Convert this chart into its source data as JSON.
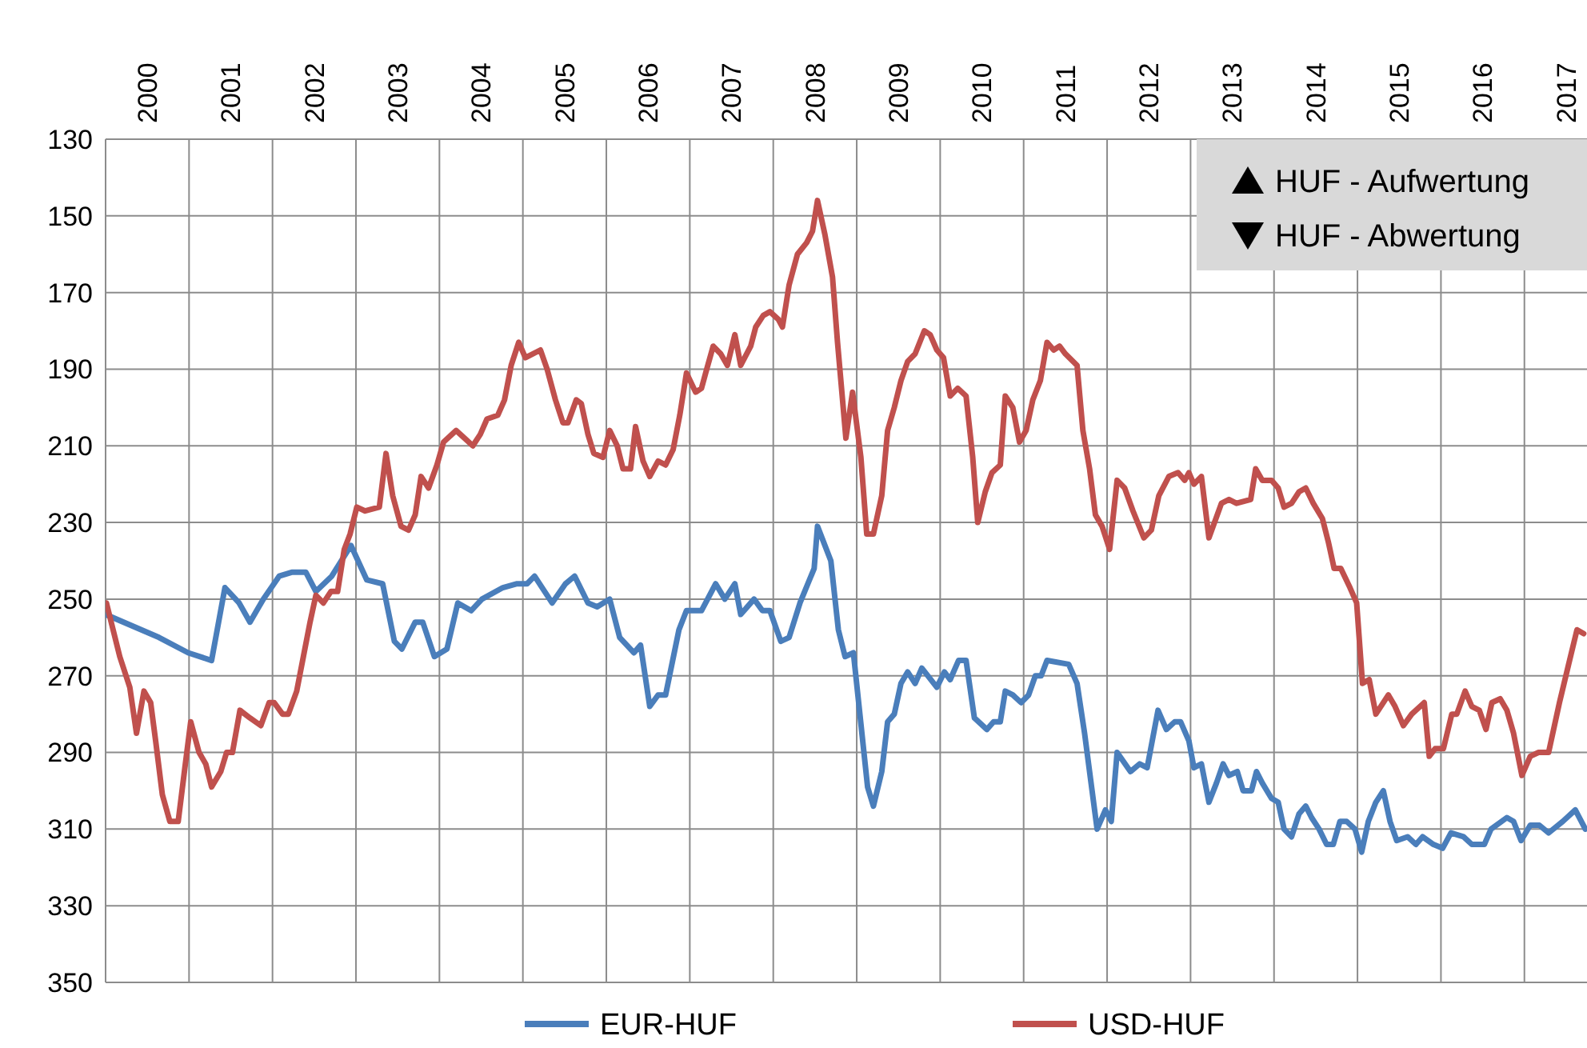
{
  "chart_data": {
    "type": "line",
    "xlim": [
      2000,
      2017.75
    ],
    "xticks": [
      {
        "value": 2000,
        "label": null
      },
      {
        "value": 2001,
        "label": null
      },
      {
        "value": 2002,
        "label": null
      },
      {
        "value": 2003,
        "label": null
      },
      {
        "value": 2004,
        "label": null
      },
      {
        "value": 2005,
        "label": null
      },
      {
        "value": 2006,
        "label": null
      },
      {
        "value": 2007,
        "label": null
      },
      {
        "value": 2008,
        "label": null
      },
      {
        "value": 2009,
        "label": null
      },
      {
        "value": 2010,
        "label": null
      },
      {
        "value": 2011,
        "label": null
      },
      {
        "value": 2012,
        "label": null
      },
      {
        "value": 2013,
        "label": null
      },
      {
        "value": 2014,
        "label": null
      },
      {
        "value": 2015,
        "label": null
      },
      {
        "value": 2016,
        "label": null
      },
      {
        "value": 2017,
        "label": null
      },
      {
        "value": 2000.5,
        "label": "2000"
      },
      {
        "value": 2001.5,
        "label": "2001"
      },
      {
        "value": 2002.5,
        "label": "2002"
      },
      {
        "value": 2003.5,
        "label": "2003"
      },
      {
        "value": 2004.5,
        "label": "2004"
      },
      {
        "value": 2005.5,
        "label": "2005"
      },
      {
        "value": 2006.5,
        "label": "2006"
      },
      {
        "value": 2007.5,
        "label": "2007"
      },
      {
        "value": 2008.5,
        "label": "2008"
      },
      {
        "value": 2009.5,
        "label": "2009"
      },
      {
        "value": 2010.5,
        "label": "2010"
      },
      {
        "value": 2011.5,
        "label": "2011"
      },
      {
        "value": 2012.5,
        "label": "2012"
      },
      {
        "value": 2013.5,
        "label": "2013"
      },
      {
        "value": 2014.5,
        "label": "2014"
      },
      {
        "value": 2015.5,
        "label": "2015"
      },
      {
        "value": 2016.5,
        "label": "2016"
      },
      {
        "value": 2017.5,
        "label": "2017"
      }
    ],
    "ylim": [
      350,
      130
    ],
    "yticks": [
      130,
      150,
      170,
      190,
      210,
      230,
      250,
      270,
      290,
      310,
      330,
      350
    ],
    "grid": true,
    "legend": "bottom",
    "marker": "none",
    "line_style": "solid",
    "annotations": [
      "HUF - Aufwertung",
      "HUF - Abwertung"
    ],
    "series": [
      {
        "name": "EUR-HUF",
        "color": "#4a7ebb",
        "x": [
          2000.0,
          2000.64,
          2000.99,
          2001.27,
          2001.43,
          2001.6,
          2001.73,
          2001.89,
          2002.08,
          2002.23,
          2002.4,
          2002.52,
          2002.71,
          2002.94,
          2003.13,
          2003.32,
          2003.46,
          2003.55,
          2003.71,
          2003.8,
          2003.94,
          2004.09,
          2004.22,
          2004.38,
          2004.51,
          2004.76,
          2004.93,
          2005.05,
          2005.14,
          2005.35,
          2005.51,
          2005.62,
          2005.78,
          2005.89,
          2006.04,
          2006.16,
          2006.33,
          2006.41,
          2006.52,
          2006.62,
          2006.71,
          2006.87,
          2006.96,
          2007.14,
          2007.31,
          2007.42,
          2007.54,
          2007.61,
          2007.77,
          2007.87,
          2007.96,
          2008.09,
          2008.19,
          2008.32,
          2008.49,
          2008.53,
          2008.69,
          2008.78,
          2008.86,
          2008.96,
          2009.13,
          2009.2,
          2009.3,
          2009.37,
          2009.45,
          2009.53,
          2009.61,
          2009.7,
          2009.78,
          2009.96,
          2010.05,
          2010.12,
          2010.22,
          2010.31,
          2010.41,
          2010.56,
          2010.64,
          2010.72,
          2010.78,
          2010.87,
          2010.97,
          2011.06,
          2011.14,
          2011.21,
          2011.28,
          2011.54,
          2011.64,
          2011.73,
          2011.79,
          2011.88,
          2011.98,
          2012.05,
          2012.12,
          2012.28,
          2012.39,
          2012.48,
          2012.61,
          2012.71,
          2012.81,
          2012.88,
          2012.98,
          2013.04,
          2013.13,
          2013.22,
          2013.31,
          2013.39,
          2013.46,
          2013.56,
          2013.63,
          2013.73,
          2013.79,
          2013.86,
          2013.97,
          2014.05,
          2014.12,
          2014.21,
          2014.3,
          2014.38,
          2014.45,
          2014.54,
          2014.63,
          2014.71,
          2014.79,
          2014.87,
          2014.97,
          2015.05,
          2015.13,
          2015.22,
          2015.31,
          2015.39,
          2015.47,
          2015.6,
          2015.7,
          2015.78,
          2015.91,
          2016.02,
          2016.12,
          2016.27,
          2016.37,
          2016.52,
          2016.6,
          2016.79,
          2016.87,
          2016.96,
          2017.07,
          2017.18,
          2017.29,
          2017.46,
          2017.61,
          2017.73
        ],
        "values": [
          254,
          260,
          264,
          266,
          247,
          251,
          256,
          250,
          244,
          243,
          243,
          248,
          244,
          236,
          245,
          246,
          261,
          263,
          256,
          256,
          265,
          263,
          251,
          253,
          250,
          247,
          246,
          246,
          244,
          251,
          246,
          244,
          251,
          252,
          250,
          260,
          264,
          262,
          278,
          275,
          275,
          258,
          253,
          253,
          246,
          250,
          246,
          254,
          250,
          253,
          253,
          261,
          260,
          251,
          242,
          231,
          240,
          258,
          265,
          264,
          299,
          304,
          295,
          282,
          280,
          272,
          269,
          272,
          268,
          273,
          269,
          271,
          266,
          266,
          281,
          284,
          282,
          282,
          274,
          275,
          277,
          275,
          270,
          270,
          266,
          267,
          272,
          285,
          295,
          310,
          305,
          308,
          290,
          295,
          293,
          294,
          279,
          284,
          282,
          282,
          287,
          294,
          293,
          303,
          298,
          293,
          296,
          295,
          300,
          300,
          295,
          298,
          302,
          303,
          310,
          312,
          306,
          304,
          307,
          310,
          314,
          314,
          308,
          308,
          310,
          316,
          308,
          303,
          300,
          308,
          313,
          312,
          314,
          312,
          314,
          315,
          311,
          312,
          314,
          314,
          310,
          307,
          308,
          313,
          309,
          309,
          311,
          308,
          305,
          310
        ]
      },
      {
        "name": "USD-HUF",
        "color": "#c0504d",
        "x": [
          2000.01,
          2000.17,
          2000.29,
          2000.37,
          2000.46,
          2000.54,
          2000.6,
          2000.68,
          2000.77,
          2000.87,
          2000.95,
          2001.02,
          2001.12,
          2001.2,
          2001.27,
          2001.38,
          2001.45,
          2001.52,
          2001.61,
          2001.73,
          2001.86,
          2001.96,
          2002.02,
          2002.12,
          2002.19,
          2002.29,
          2002.37,
          2002.45,
          2002.52,
          2002.61,
          2002.7,
          2002.78,
          2002.86,
          2002.93,
          2003.01,
          2003.11,
          2003.28,
          2003.36,
          2003.44,
          2003.54,
          2003.63,
          2003.71,
          2003.78,
          2003.87,
          2003.97,
          2004.05,
          2004.2,
          2004.3,
          2004.4,
          2004.49,
          2004.57,
          2004.7,
          2004.78,
          2004.86,
          2004.95,
          2005.03,
          2005.21,
          2005.29,
          2005.39,
          2005.48,
          2005.54,
          2005.64,
          2005.7,
          2005.78,
          2005.85,
          2005.96,
          2006.04,
          2006.13,
          2006.2,
          2006.29,
          2006.35,
          2006.44,
          2006.52,
          2006.62,
          2006.71,
          2006.8,
          2006.88,
          2006.96,
          2007.07,
          2007.14,
          2007.19,
          2007.28,
          2007.37,
          2007.45,
          2007.54,
          2007.61,
          2007.73,
          2007.79,
          2007.88,
          2007.96,
          2008.06,
          2008.11,
          2008.19,
          2008.29,
          2008.4,
          2008.47,
          2008.53,
          2008.62,
          2008.71,
          2008.77,
          2008.87,
          2008.95,
          2009.05,
          2009.12,
          2009.2,
          2009.3,
          2009.37,
          2009.45,
          2009.53,
          2009.61,
          2009.7,
          2009.81,
          2009.88,
          2009.96,
          2010.04,
          2010.12,
          2010.21,
          2010.31,
          2010.39,
          2010.45,
          2010.54,
          2010.62,
          2010.72,
          2010.78,
          2010.87,
          2010.95,
          2011.03,
          2011.11,
          2011.2,
          2011.28,
          2011.36,
          2011.43,
          2011.5,
          2011.64,
          2011.71,
          2011.79,
          2011.86,
          2011.94,
          2012.03,
          2012.12,
          2012.21,
          2012.31,
          2012.44,
          2012.53,
          2012.62,
          2012.74,
          2012.85,
          2012.93,
          2012.98,
          2013.04,
          2013.13,
          2013.22,
          2013.37,
          2013.46,
          2013.55,
          2013.72,
          2013.78,
          2013.86,
          2013.97,
          2014.05,
          2014.12,
          2014.21,
          2014.3,
          2014.38,
          2014.47,
          2014.58,
          2014.65,
          2014.72,
          2014.8,
          2014.91,
          2014.99,
          2015.06,
          2015.14,
          2015.22,
          2015.37,
          2015.45,
          2015.55,
          2015.65,
          2015.8,
          2015.86,
          2015.93,
          2016.03,
          2016.13,
          2016.19,
          2016.29,
          2016.37,
          2016.46,
          2016.54,
          2016.61,
          2016.71,
          2016.79,
          2016.87,
          2016.97,
          2017.07,
          2017.17,
          2017.29,
          2017.42,
          2017.53,
          2017.63,
          2017.71
        ],
        "values": [
          251,
          265,
          273,
          285,
          274,
          277,
          287,
          301,
          308,
          308,
          294,
          282,
          290,
          293,
          299,
          295,
          290,
          290,
          279,
          281,
          283,
          277,
          277,
          280,
          280,
          274,
          265,
          256,
          249,
          251,
          248,
          248,
          237,
          233,
          226,
          227,
          226,
          212,
          223,
          231,
          232,
          228,
          218,
          221,
          215,
          209,
          206,
          208,
          210,
          207,
          203,
          202,
          198,
          189,
          183,
          187,
          185,
          190,
          198,
          204,
          204,
          198,
          199,
          207,
          212,
          213,
          206,
          210,
          216,
          216,
          205,
          214,
          218,
          214,
          215,
          211,
          202,
          191,
          196,
          195,
          191,
          184,
          186,
          189,
          181,
          189,
          184,
          179,
          176,
          175,
          177,
          179,
          168,
          160,
          157,
          154,
          146,
          155,
          166,
          183,
          208,
          196,
          213,
          233,
          233,
          223,
          206,
          200,
          193,
          188,
          186,
          180,
          181,
          185,
          187,
          197,
          195,
          197,
          213,
          230,
          222,
          217,
          215,
          197,
          200,
          209,
          206,
          198,
          193,
          183,
          185,
          184,
          186,
          189,
          206,
          216,
          228,
          231,
          237,
          219,
          221,
          227,
          234,
          232,
          223,
          218,
          217,
          219,
          217,
          220,
          218,
          234,
          225,
          224,
          225,
          224,
          216,
          219,
          219,
          221,
          226,
          225,
          222,
          221,
          225,
          229,
          235,
          242,
          242,
          247,
          251,
          272,
          271,
          280,
          275,
          278,
          283,
          280,
          277,
          291,
          289,
          289,
          280,
          280,
          274,
          278,
          279,
          284,
          277,
          276,
          279,
          285,
          296,
          291,
          290,
          290,
          277,
          267,
          258,
          259
        ]
      }
    ]
  }
}
